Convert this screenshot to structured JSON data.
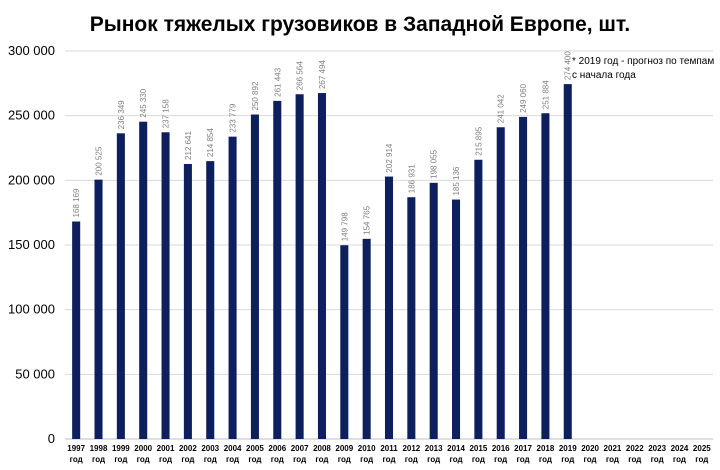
{
  "chart_data": {
    "type": "bar",
    "title": "Рынок тяжелых грузовиков в Западной Европе, шт.",
    "xlabel": "",
    "ylabel": "",
    "ylim": [
      0,
      300000
    ],
    "yticks": [
      0,
      50000,
      100000,
      150000,
      200000,
      250000,
      300000
    ],
    "ytick_labels": [
      "0",
      "50 000",
      "100 000",
      "150 000",
      "200 000",
      "250 000",
      "300 000"
    ],
    "grid": true,
    "bar_color": "#0d1f5c",
    "categories": [
      "1997",
      "1998",
      "1999",
      "2000",
      "2001",
      "2002",
      "2003",
      "2004",
      "2005",
      "2006",
      "2007",
      "2008",
      "2009",
      "2010",
      "2011",
      "2012",
      "2013",
      "2014",
      "2015",
      "2016",
      "2017",
      "2018",
      "2019",
      "2020",
      "2021",
      "2022",
      "2023",
      "2024",
      "2025"
    ],
    "category_suffix": "год",
    "values": [
      168169,
      200525,
      236349,
      245330,
      237158,
      212641,
      214854,
      233779,
      250892,
      261443,
      266564,
      267494,
      149798,
      154765,
      202914,
      186931,
      198055,
      185136,
      215895,
      241042,
      249060,
      251884,
      274400,
      null,
      null,
      null,
      null,
      null,
      null
    ],
    "data_labels": [
      "168 169",
      "200 525",
      "236 349",
      "245 330",
      "237 158",
      "212 641",
      "214 854",
      "233 779",
      "250 892",
      "261 443",
      "266 564",
      "267 494",
      "149 798",
      "154 765",
      "202 914",
      "186 931",
      "198 055",
      "185 136",
      "215 895",
      "241 042",
      "249 060",
      "251 884",
      "274 400",
      "",
      "",
      "",
      "",
      "",
      ""
    ],
    "annotation": {
      "lines": [
        "* 2019 год - прогноз по темпам",
        "с начала года"
      ]
    }
  }
}
